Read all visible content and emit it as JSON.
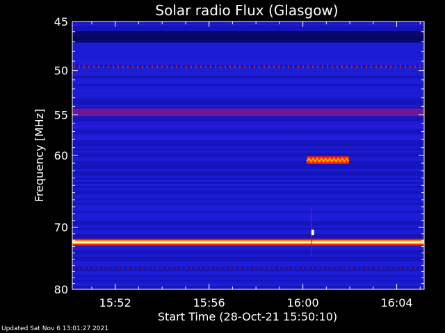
{
  "chart_data": {
    "type": "heatmap",
    "title": "Solar radio Flux (Glasgow)",
    "xlabel": "Start Time (28-Oct-21 15:50:10)",
    "ylabel": "Frequency [MHz]",
    "x_unit": "minutes",
    "xlim": [
      0,
      15.0
    ],
    "x_ticks": [
      {
        "value": 1.83,
        "label": "15:52"
      },
      {
        "value": 5.83,
        "label": "15:56"
      },
      {
        "value": 9.83,
        "label": "16:00"
      },
      {
        "value": 13.83,
        "label": "16:04"
      }
    ],
    "ylim": [
      45,
      80
    ],
    "y_scale": "log",
    "y_ticks": [
      45,
      50,
      55,
      60,
      70,
      80
    ],
    "colormap": [
      "#000033",
      "#0000aa",
      "#2a1adf",
      "#8a1a8a",
      "#ff2200",
      "#ffa000",
      "#ffff80",
      "#ffffff"
    ],
    "colors": {
      "background": "#1a1ad2",
      "axes": "#ffffff"
    },
    "features": [
      {
        "kind": "band",
        "freq": 46.5,
        "width": 1.2,
        "intensity": 0.12
      },
      {
        "kind": "band",
        "freq": 49.6,
        "width": 0.3,
        "intensity": 0.6
      },
      {
        "kind": "band",
        "freq": 54.7,
        "width": 0.9,
        "intensity": 0.42
      },
      {
        "kind": "band",
        "freq": 56.2,
        "width": 0.8,
        "intensity": 0.35
      },
      {
        "kind": "band",
        "freq": 57.7,
        "width": 0.5,
        "intensity": 0.3
      },
      {
        "kind": "band",
        "freq": 72.3,
        "width": 0.6,
        "intensity": 1.0
      },
      {
        "kind": "band",
        "freq": 76.5,
        "width": 0.2,
        "intensity": 0.5
      },
      {
        "kind": "burst",
        "t_start": 10.0,
        "t_end": 11.8,
        "freq_start": 60.3,
        "freq_end": 60.9,
        "intensity": 0.78
      },
      {
        "kind": "spike",
        "t": 10.2,
        "freq_start": 67.0,
        "freq_end": 74.5,
        "intensity": 0.55
      },
      {
        "kind": "spot",
        "t": 10.25,
        "freq": 70.8,
        "intensity": 1.0
      }
    ]
  },
  "footer": {
    "updated": "Updated Sat Nov  6 13:01:27 2021"
  }
}
